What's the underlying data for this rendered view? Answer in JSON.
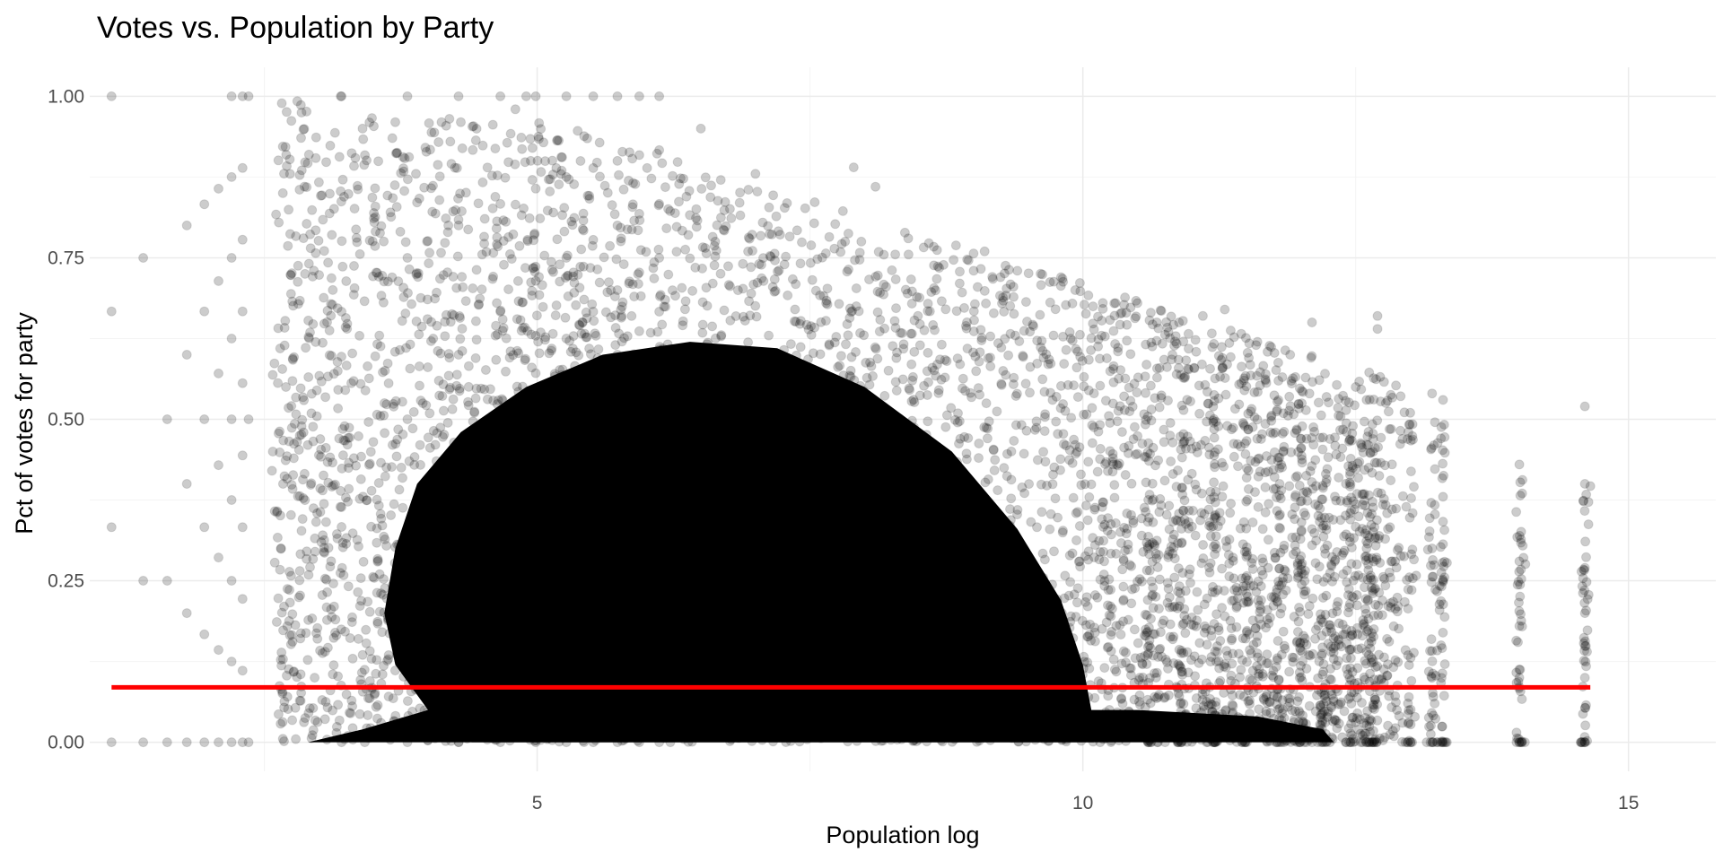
{
  "chart_data": {
    "type": "scatter",
    "title": "Votes vs. Population by Party",
    "xlabel": "Population log",
    "ylabel": "Pct of votes for party",
    "xlim": [
      0.9,
      15.8
    ],
    "ylim": [
      -0.045,
      1.045
    ],
    "x_ticks": [
      5,
      10,
      15
    ],
    "x_tick_labels": [
      "5",
      "10",
      "15"
    ],
    "y_ticks": [
      0,
      0.25,
      0.5,
      0.75,
      1.0
    ],
    "y_tick_labels": [
      "0.00",
      "0.25",
      "0.50",
      "0.75",
      "1.00"
    ],
    "grid": true,
    "legend": "none",
    "point_color": "#000000",
    "point_alpha": 0.2,
    "reference_line": {
      "type": "horizontal",
      "y": 0.085,
      "x_start": 1.1,
      "x_end": 14.65,
      "color": "#ff0000"
    },
    "points_summary": "Dense cloud of ~hundreds of thousands of precinct-level points, densest for x≈4.5–10 and y≈0–0.45, thinning toward high y and high x; discrete columns above x≈10.5.",
    "sample_points": [
      [
        1.1,
        1.0
      ],
      [
        1.1,
        0.667
      ],
      [
        1.1,
        0.333
      ],
      [
        1.1,
        0.0
      ],
      [
        1.39,
        0.75
      ],
      [
        1.39,
        0.25
      ],
      [
        1.39,
        0.0
      ],
      [
        1.61,
        0.5
      ],
      [
        1.61,
        0.25
      ],
      [
        1.61,
        0.0
      ],
      [
        1.79,
        0.8
      ],
      [
        1.79,
        0.6
      ],
      [
        1.79,
        0.4
      ],
      [
        1.79,
        0.2
      ],
      [
        1.79,
        0.0
      ],
      [
        1.95,
        0.833
      ],
      [
        1.95,
        0.667
      ],
      [
        1.95,
        0.5
      ],
      [
        1.95,
        0.333
      ],
      [
        1.95,
        0.167
      ],
      [
        1.95,
        0.0
      ],
      [
        2.08,
        0.857
      ],
      [
        2.08,
        0.714
      ],
      [
        2.08,
        0.571
      ],
      [
        2.08,
        0.429
      ],
      [
        2.08,
        0.286
      ],
      [
        2.08,
        0.143
      ],
      [
        2.08,
        0.0
      ],
      [
        2.2,
        1.0
      ],
      [
        2.2,
        0.875
      ],
      [
        2.2,
        0.75
      ],
      [
        2.2,
        0.625
      ],
      [
        2.2,
        0.5
      ],
      [
        2.2,
        0.375
      ],
      [
        2.2,
        0.25
      ],
      [
        2.2,
        0.125
      ],
      [
        2.2,
        0.0
      ],
      [
        2.3,
        1.0
      ],
      [
        2.3,
        0.889
      ],
      [
        2.3,
        0.778
      ],
      [
        2.3,
        0.667
      ],
      [
        2.3,
        0.556
      ],
      [
        2.3,
        0.444
      ],
      [
        2.3,
        0.333
      ],
      [
        2.3,
        0.222
      ],
      [
        2.3,
        0.111
      ],
      [
        2.3,
        0.0
      ],
      [
        3.2,
        1.0
      ],
      [
        3.4,
        0.95
      ],
      [
        3.7,
        0.96
      ],
      [
        4.3,
        0.96
      ],
      [
        4.9,
        1.0
      ],
      [
        4.8,
        0.98
      ],
      [
        6.5,
        0.95
      ],
      [
        7.0,
        0.88
      ],
      [
        7.9,
        0.89
      ],
      [
        8.1,
        0.86
      ],
      [
        8.4,
        0.78
      ],
      [
        9.0,
        0.73
      ],
      [
        9.1,
        0.76
      ],
      [
        9.4,
        0.73
      ],
      [
        9.8,
        0.72
      ],
      [
        10.3,
        0.68
      ],
      [
        10.5,
        0.68
      ],
      [
        11.1,
        0.66
      ],
      [
        11.3,
        0.67
      ],
      [
        11.6,
        0.62
      ],
      [
        11.9,
        0.6
      ],
      [
        12.1,
        0.65
      ],
      [
        12.5,
        0.55
      ],
      [
        12.6,
        0.53
      ],
      [
        12.7,
        0.66
      ],
      [
        12.7,
        0.64
      ],
      [
        13.0,
        0.51
      ],
      [
        13.2,
        0.54
      ],
      [
        13.3,
        0.53
      ],
      [
        14.0,
        0.43
      ],
      [
        14.6,
        0.52
      ],
      [
        14.6,
        0.4
      ],
      [
        14.0,
        0.28
      ],
      [
        14.0,
        0.18
      ],
      [
        14.6,
        0.27
      ],
      [
        14.6,
        0.2
      ],
      [
        14.6,
        0.1
      ],
      [
        14.6,
        0.0
      ],
      [
        14.0,
        0.1
      ],
      [
        14.0,
        0.0
      ],
      [
        13.3,
        0.38
      ],
      [
        13.3,
        0.25
      ],
      [
        13.3,
        0.0
      ],
      [
        13.2,
        0.3
      ],
      [
        13.2,
        0.0
      ],
      [
        12.6,
        0.3
      ],
      [
        12.6,
        0.0
      ],
      [
        12.1,
        0.33
      ],
      [
        12.1,
        0.0
      ]
    ]
  }
}
